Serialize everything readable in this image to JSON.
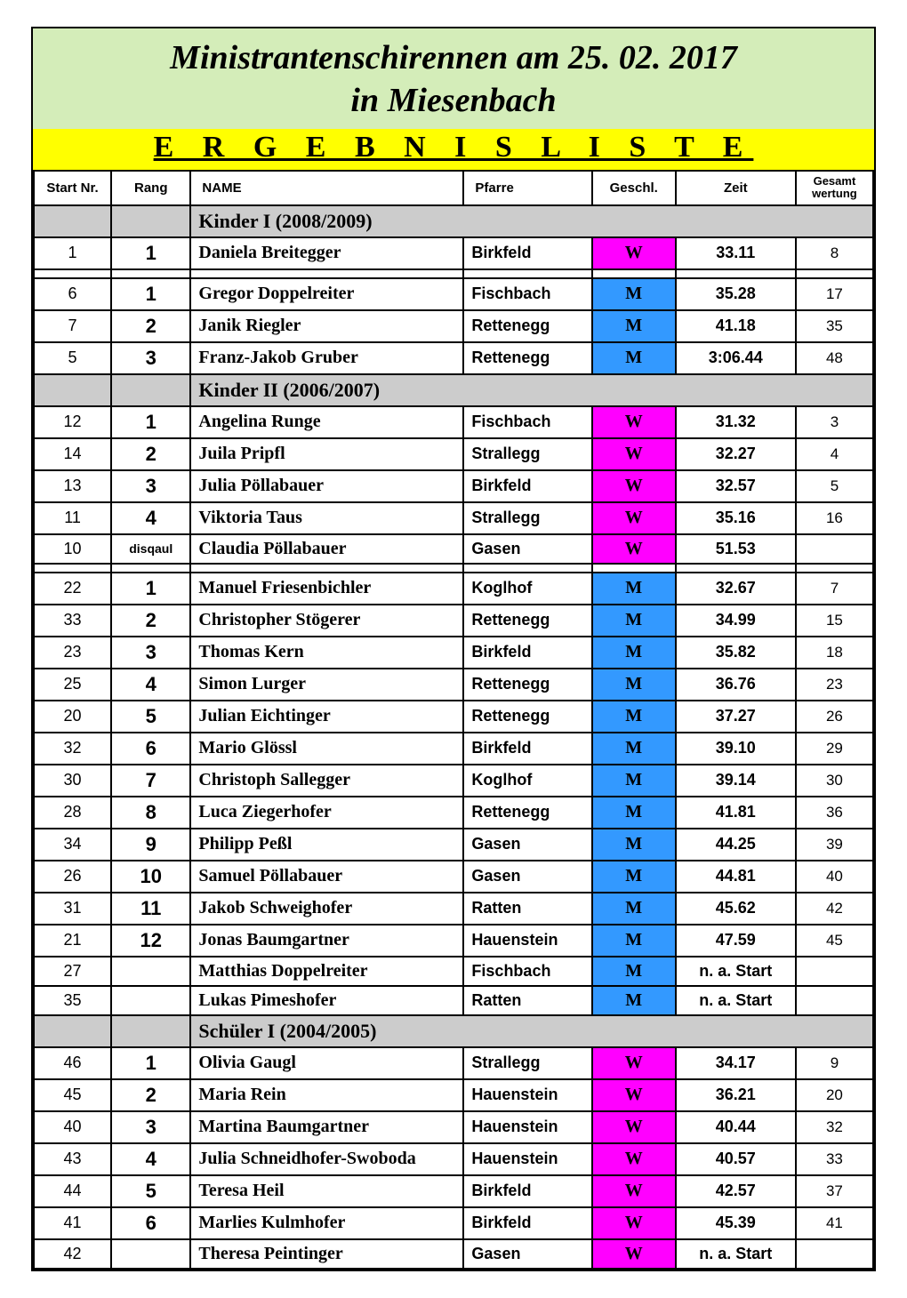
{
  "colors": {
    "page_bg": "#ffffff",
    "title_bg": "#d4edb9",
    "subtitle_bg": "#ffff00",
    "category_bg": "#cccccc",
    "geschl_M_bg": "#3399ff",
    "geschl_W_bg": "#ff00ff",
    "border": "#000000"
  },
  "fonts": {
    "serif": "Times New Roman",
    "sans": "Arial",
    "title_size_pt": 28,
    "subtitle_size_pt": 26,
    "category_size_pt": 16,
    "rank_size_pt": 16,
    "body_size_pt": 14
  },
  "title_lines": [
    "Ministrantenschirennen am 25. 02. 2017",
    "in Miesenbach"
  ],
  "subtitle": "E R G E B N I S L I S T E",
  "headers": {
    "start": "Start Nr.",
    "rang": "Rang",
    "name": "NAME",
    "pfarre": "Pfarre",
    "geschl": "Geschl.",
    "zeit": "Zeit",
    "gw": "Gesamt wertung"
  },
  "sections": [
    {
      "category": "Kinder I (2008/2009)",
      "groups": [
        [
          {
            "start": "1",
            "rang": "1",
            "name": "Daniela Breitegger",
            "pfarre": "Birkfeld",
            "geschl": "W",
            "zeit": "33.11",
            "gw": "8"
          }
        ],
        [
          {
            "start": "6",
            "rang": "1",
            "name": "Gregor Doppelreiter",
            "pfarre": "Fischbach",
            "geschl": "M",
            "zeit": "35.28",
            "gw": "17"
          },
          {
            "start": "7",
            "rang": "2",
            "name": "Janik Riegler",
            "pfarre": "Rettenegg",
            "geschl": "M",
            "zeit": "41.18",
            "gw": "35"
          },
          {
            "start": "5",
            "rang": "3",
            "name": "Franz-Jakob Gruber",
            "pfarre": "Rettenegg",
            "geschl": "M",
            "zeit": "3:06.44",
            "gw": "48"
          }
        ]
      ]
    },
    {
      "category": "Kinder II (2006/2007)",
      "groups": [
        [
          {
            "start": "12",
            "rang": "1",
            "name": "Angelina Runge",
            "pfarre": "Fischbach",
            "geschl": "W",
            "zeit": "31.32",
            "gw": "3"
          },
          {
            "start": "14",
            "rang": "2",
            "name": "Juila Pripfl",
            "pfarre": "Strallegg",
            "geschl": "W",
            "zeit": "32.27",
            "gw": "4"
          },
          {
            "start": "13",
            "rang": "3",
            "name": "Julia Pöllabauer",
            "pfarre": "Birkfeld",
            "geschl": "W",
            "zeit": "32.57",
            "gw": "5"
          },
          {
            "start": "11",
            "rang": "4",
            "name": "Viktoria Taus",
            "pfarre": "Strallegg",
            "geschl": "W",
            "zeit": "35.16",
            "gw": "16"
          },
          {
            "start": "10",
            "rang": "disqaul",
            "name": "Claudia Pöllabauer",
            "pfarre": "Gasen",
            "geschl": "W",
            "zeit": "51.53",
            "gw": ""
          }
        ],
        [
          {
            "start": "22",
            "rang": "1",
            "name": "Manuel Friesenbichler",
            "pfarre": "Koglhof",
            "geschl": "M",
            "zeit": "32.67",
            "gw": "7"
          },
          {
            "start": "33",
            "rang": "2",
            "name": "Christopher Stögerer",
            "pfarre": "Rettenegg",
            "geschl": "M",
            "zeit": "34.99",
            "gw": "15"
          },
          {
            "start": "23",
            "rang": "3",
            "name": "Thomas Kern",
            "pfarre": "Birkfeld",
            "geschl": "M",
            "zeit": "35.82",
            "gw": "18"
          },
          {
            "start": "25",
            "rang": "4",
            "name": "Simon Lurger",
            "pfarre": "Rettenegg",
            "geschl": "M",
            "zeit": "36.76",
            "gw": "23"
          },
          {
            "start": "20",
            "rang": "5",
            "name": "Julian Eichtinger",
            "pfarre": "Rettenegg",
            "geschl": "M",
            "zeit": "37.27",
            "gw": "26"
          },
          {
            "start": "32",
            "rang": "6",
            "name": "Mario Glössl",
            "pfarre": "Birkfeld",
            "geschl": "M",
            "zeit": "39.10",
            "gw": "29"
          },
          {
            "start": "30",
            "rang": "7",
            "name": "Christoph Sallegger",
            "pfarre": "Koglhof",
            "geschl": "M",
            "zeit": "39.14",
            "gw": "30"
          },
          {
            "start": "28",
            "rang": "8",
            "name": "Luca Ziegerhofer",
            "pfarre": "Rettenegg",
            "geschl": "M",
            "zeit": "41.81",
            "gw": "36"
          },
          {
            "start": "34",
            "rang": "9",
            "name": "Philipp Peßl",
            "pfarre": "Gasen",
            "geschl": "M",
            "zeit": "44.25",
            "gw": "39"
          },
          {
            "start": "26",
            "rang": "10",
            "name": "Samuel Pöllabauer",
            "pfarre": "Gasen",
            "geschl": "M",
            "zeit": "44.81",
            "gw": "40"
          },
          {
            "start": "31",
            "rang": "11",
            "name": "Jakob Schweighofer",
            "pfarre": "Ratten",
            "geschl": "M",
            "zeit": "45.62",
            "gw": "42"
          },
          {
            "start": "21",
            "rang": "12",
            "name": "Jonas Baumgartner",
            "pfarre": "Hauenstein",
            "geschl": "M",
            "zeit": "47.59",
            "gw": "45"
          },
          {
            "start": "27",
            "rang": "",
            "name": "Matthias Doppelreiter",
            "pfarre": "Fischbach",
            "geschl": "M",
            "zeit": "n. a. Start",
            "gw": ""
          },
          {
            "start": "35",
            "rang": "",
            "name": "Lukas Pimeshofer",
            "pfarre": "Ratten",
            "geschl": "M",
            "zeit": "n. a. Start",
            "gw": ""
          }
        ]
      ]
    },
    {
      "category": "Schüler I (2004/2005)",
      "groups": [
        [
          {
            "start": "46",
            "rang": "1",
            "name": "Olivia Gaugl",
            "pfarre": "Strallegg",
            "geschl": "W",
            "zeit": "34.17",
            "gw": "9"
          },
          {
            "start": "45",
            "rang": "2",
            "name": "Maria Rein",
            "pfarre": "Hauenstein",
            "geschl": "W",
            "zeit": "36.21",
            "gw": "20"
          },
          {
            "start": "40",
            "rang": "3",
            "name": "Martina Baumgartner",
            "pfarre": "Hauenstein",
            "geschl": "W",
            "zeit": "40.44",
            "gw": "32"
          },
          {
            "start": "43",
            "rang": "4",
            "name": "Julia Schneidhofer-Swoboda",
            "pfarre": "Hauenstein",
            "geschl": "W",
            "zeit": "40.57",
            "gw": "33"
          },
          {
            "start": "44",
            "rang": "5",
            "name": "Teresa Heil",
            "pfarre": "Birkfeld",
            "geschl": "W",
            "zeit": "42.57",
            "gw": "37"
          },
          {
            "start": "41",
            "rang": "6",
            "name": "Marlies Kulmhofer",
            "pfarre": "Birkfeld",
            "geschl": "W",
            "zeit": "45.39",
            "gw": "41"
          },
          {
            "start": "42",
            "rang": "",
            "name": "Theresa Peintinger",
            "pfarre": "Gasen",
            "geschl": "W",
            "zeit": "n. a. Start",
            "gw": ""
          }
        ]
      ]
    }
  ]
}
